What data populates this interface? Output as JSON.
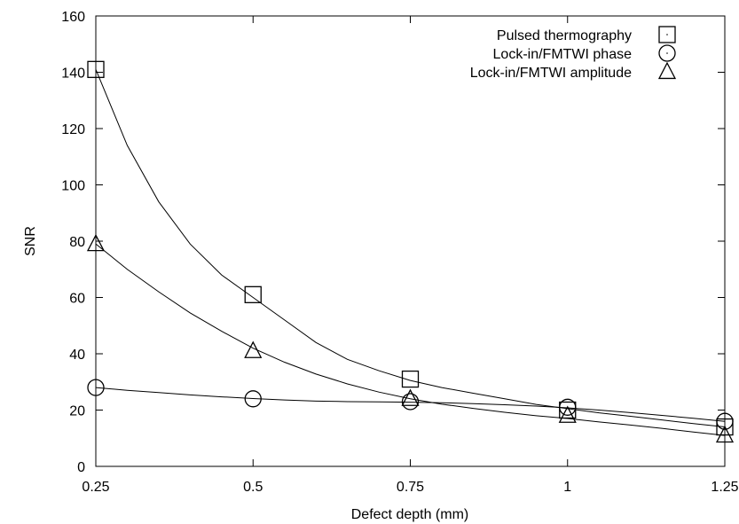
{
  "chart_data": {
    "type": "line",
    "title": "",
    "xlabel": "Defect depth (mm)",
    "ylabel": "SNR",
    "xlim": [
      0.25,
      1.25
    ],
    "ylim": [
      0,
      160
    ],
    "x_ticks": [
      0.25,
      0.5,
      0.75,
      1,
      1.25
    ],
    "x_tick_labels": [
      "0.25",
      "0.5",
      "0.75",
      "1",
      "1.25"
    ],
    "y_ticks": [
      0,
      20,
      40,
      60,
      80,
      100,
      120,
      140,
      160
    ],
    "y_tick_labels": [
      "0",
      "20",
      "40",
      "60",
      "80",
      "100",
      "120",
      "140",
      "160"
    ],
    "grid": false,
    "legend_position": "top-right",
    "series": [
      {
        "name": "Pulsed thermography",
        "marker": "square",
        "x": [
          0.25,
          0.5,
          0.75,
          1,
          1.25
        ],
        "y": [
          141,
          61,
          31,
          20,
          14
        ],
        "fit": [
          [
            0.25,
            141
          ],
          [
            0.3,
            114
          ],
          [
            0.35,
            94
          ],
          [
            0.4,
            79
          ],
          [
            0.45,
            68
          ],
          [
            0.5,
            60
          ],
          [
            0.55,
            52
          ],
          [
            0.6,
            44
          ],
          [
            0.65,
            38
          ],
          [
            0.7,
            34
          ],
          [
            0.75,
            30.5
          ],
          [
            0.8,
            28
          ],
          [
            0.85,
            26
          ],
          [
            0.9,
            24
          ],
          [
            0.95,
            22
          ],
          [
            1,
            20.5
          ],
          [
            1.05,
            19
          ],
          [
            1.1,
            17.8
          ],
          [
            1.15,
            16.5
          ],
          [
            1.2,
            15.2
          ],
          [
            1.25,
            14
          ]
        ]
      },
      {
        "name": "Lock-in/FMTWI phase",
        "marker": "circle",
        "x": [
          0.25,
          0.5,
          0.75,
          1,
          1.25
        ],
        "y": [
          28,
          24,
          23,
          21,
          16
        ],
        "fit": [
          [
            0.25,
            28
          ],
          [
            0.3,
            27
          ],
          [
            0.35,
            26.2
          ],
          [
            0.4,
            25.4
          ],
          [
            0.45,
            24.7
          ],
          [
            0.5,
            24.1
          ],
          [
            0.55,
            23.6
          ],
          [
            0.6,
            23.2
          ],
          [
            0.65,
            23
          ],
          [
            0.7,
            22.9
          ],
          [
            0.75,
            22.8
          ],
          [
            0.8,
            22.6
          ],
          [
            0.85,
            22.3
          ],
          [
            0.9,
            21.9
          ],
          [
            0.95,
            21.4
          ],
          [
            1,
            20.8
          ],
          [
            1.05,
            20
          ],
          [
            1.1,
            19.1
          ],
          [
            1.15,
            18.1
          ],
          [
            1.2,
            17.1
          ],
          [
            1.25,
            16
          ]
        ]
      },
      {
        "name": "Lock-in/FMTWI amplitude",
        "marker": "triangle",
        "x": [
          0.25,
          0.5,
          0.75,
          1,
          1.25
        ],
        "y": [
          79,
          41,
          24,
          18,
          11
        ],
        "fit": [
          [
            0.25,
            79
          ],
          [
            0.3,
            70
          ],
          [
            0.35,
            62
          ],
          [
            0.4,
            54.5
          ],
          [
            0.45,
            48
          ],
          [
            0.5,
            42
          ],
          [
            0.55,
            37
          ],
          [
            0.6,
            32.8
          ],
          [
            0.65,
            29.3
          ],
          [
            0.7,
            26.4
          ],
          [
            0.75,
            24
          ],
          [
            0.8,
            22.1
          ],
          [
            0.85,
            20.6
          ],
          [
            0.9,
            19.2
          ],
          [
            0.95,
            18
          ],
          [
            1,
            17
          ],
          [
            1.05,
            15.8
          ],
          [
            1.1,
            14.7
          ],
          [
            1.15,
            13.5
          ],
          [
            1.2,
            12.2
          ],
          [
            1.25,
            11
          ]
        ]
      }
    ]
  }
}
